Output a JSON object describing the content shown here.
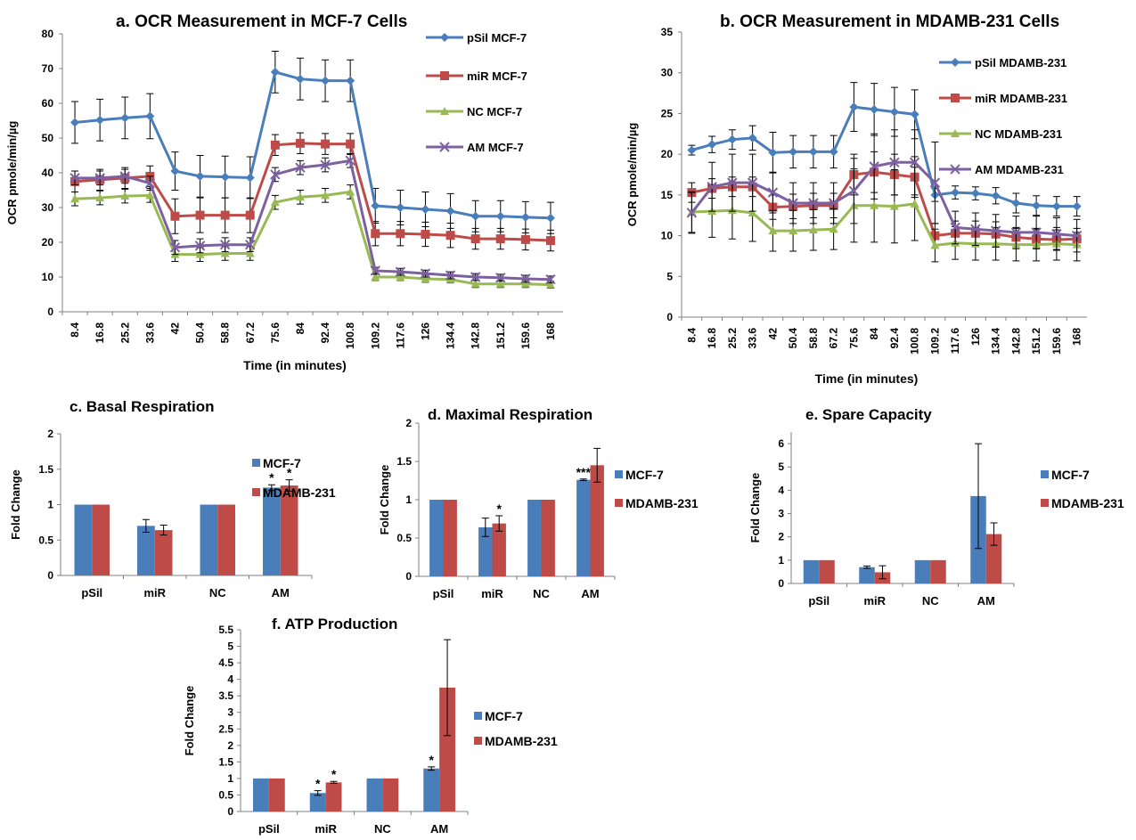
{
  "colors": {
    "pSil": "#4a7ebb",
    "miR": "#be4b48",
    "NC": "#98b954",
    "AM": "#7d60a0",
    "bar_mcf7": "#4a7ebb",
    "bar_mdamb": "#be4b48",
    "axis": "#808080",
    "error": "#000000"
  },
  "chart_data": [
    {
      "id": "a",
      "type": "line",
      "label": "a.",
      "title": "OCR Measurement in MCF-7 Cells",
      "xlabel": "Time (in minutes)",
      "ylabel": "OCR pmole/min/µg",
      "ylim": [
        0,
        80
      ],
      "yticks": [
        0,
        10,
        20,
        30,
        40,
        50,
        60,
        70,
        80
      ],
      "x": [
        "8.4",
        "16.8",
        "25.2",
        "33.6",
        "42",
        "50.4",
        "58.8",
        "67.2",
        "75.6",
        "84",
        "92.4",
        "100.8",
        "109.2",
        "117.6",
        "126",
        "134.4",
        "142.8",
        "151.2",
        "159.6",
        "168"
      ],
      "series": [
        {
          "name": "pSil MCF-7",
          "key": "pSil",
          "marker": "diamond",
          "values": [
            54.5,
            55.2,
            55.8,
            56.3,
            40.5,
            39.0,
            38.8,
            38.6,
            69.0,
            67.0,
            66.5,
            66.5,
            30.5,
            30.0,
            29.5,
            29.0,
            27.5,
            27.5,
            27.2,
            27.0
          ],
          "errors": [
            6,
            6,
            6,
            6.5,
            5.5,
            6,
            6,
            6,
            6,
            6,
            6,
            6,
            5,
            5,
            5,
            5,
            4.5,
            4.5,
            4.5,
            4.5
          ]
        },
        {
          "name": "miR MCF-7",
          "key": "miR",
          "marker": "square",
          "values": [
            37.5,
            38.0,
            38.5,
            39.0,
            27.5,
            27.8,
            27.8,
            27.8,
            48.0,
            48.5,
            48.3,
            48.3,
            22.5,
            22.5,
            22.3,
            22.0,
            21.0,
            21.0,
            20.8,
            20.5
          ],
          "errors": [
            3,
            3,
            3,
            3,
            5,
            5,
            5,
            5,
            3,
            3,
            3,
            3,
            3.5,
            3.5,
            3.5,
            3.5,
            3,
            3,
            3,
            3
          ]
        },
        {
          "name": "NC MCF-7",
          "key": "NC",
          "marker": "triangle",
          "values": [
            32.5,
            32.8,
            33.3,
            33.5,
            16.5,
            16.5,
            16.8,
            16.8,
            31.5,
            33.0,
            33.5,
            34.5,
            10.0,
            10.0,
            9.5,
            9.3,
            8.0,
            8.0,
            8.0,
            7.8
          ],
          "errors": [
            2,
            2,
            2,
            2,
            2,
            2,
            2,
            2,
            2,
            2,
            2,
            2,
            1,
            1,
            1,
            1,
            1,
            1,
            1,
            1
          ]
        },
        {
          "name": "AM MCF-7",
          "key": "AM",
          "marker": "x",
          "values": [
            38.5,
            38.5,
            39.0,
            37.0,
            18.5,
            19.0,
            19.3,
            19.3,
            39.5,
            41.5,
            42.3,
            43.5,
            11.8,
            11.5,
            11.0,
            10.5,
            10.0,
            9.8,
            9.5,
            9.3
          ],
          "errors": [
            2,
            2,
            2,
            2,
            2,
            2,
            2,
            2,
            2,
            2,
            2,
            2,
            1,
            1,
            1,
            1,
            1,
            1,
            1,
            1
          ]
        }
      ]
    },
    {
      "id": "b",
      "type": "line",
      "label": "b.",
      "title": "OCR Measurement in MDAMB-231 Cells",
      "xlabel": "Time (in minutes)",
      "ylabel": "OCR pmole/min/µg",
      "ylim": [
        0,
        35
      ],
      "yticks": [
        0,
        5,
        10,
        15,
        20,
        25,
        30,
        35
      ],
      "x": [
        "8.4",
        "16.8",
        "25.2",
        "33.6",
        "42",
        "50.4",
        "58.8",
        "67.2",
        "75.6",
        "84",
        "92.4",
        "100.8",
        "109.2",
        "117.6",
        "126",
        "134.4",
        "142.8",
        "151.2",
        "159.6",
        "168"
      ],
      "series": [
        {
          "name": "pSil MDAMB-231",
          "key": "pSil",
          "marker": "diamond",
          "values": [
            20.5,
            21.2,
            21.8,
            22.0,
            20.2,
            20.3,
            20.3,
            20.3,
            25.8,
            25.5,
            25.2,
            24.9,
            15.0,
            15.3,
            15.2,
            14.9,
            14.0,
            13.7,
            13.6,
            13.6
          ],
          "errors": [
            0.6,
            1.0,
            1.2,
            1.5,
            2.5,
            2.0,
            2.0,
            2.0,
            3.0,
            3.2,
            3.0,
            3.0,
            0.8,
            0.8,
            0.8,
            1.0,
            1.2,
            1.2,
            1.2,
            1.2
          ]
        },
        {
          "name": "miR MDAMB-231",
          "key": "miR",
          "marker": "square",
          "values": [
            15.3,
            15.8,
            16.0,
            16.0,
            13.5,
            13.6,
            13.7,
            13.7,
            17.5,
            17.8,
            17.5,
            17.2,
            10.0,
            10.3,
            10.3,
            10.2,
            9.8,
            9.6,
            9.5,
            9.6
          ],
          "errors": [
            1.2,
            1.2,
            1.2,
            1.2,
            1.5,
            1.5,
            1.5,
            1.5,
            2.5,
            2.5,
            2.5,
            2.5,
            1.5,
            1.5,
            1.5,
            1.5,
            1.2,
            1.2,
            1.2,
            0.8
          ]
        },
        {
          "name": "NC MDAMB-231",
          "key": "NC",
          "marker": "triangle",
          "values": [
            12.9,
            13.0,
            13.1,
            12.8,
            10.6,
            10.6,
            10.7,
            10.8,
            13.7,
            13.7,
            13.6,
            13.9,
            8.8,
            9.1,
            9.0,
            9.0,
            8.9,
            8.9,
            9.0,
            8.9
          ],
          "errors": [
            2.5,
            3.2,
            3.5,
            3.5,
            2.5,
            2.5,
            2.5,
            2.5,
            4.5,
            4.5,
            4.5,
            4.5,
            2.0,
            2.0,
            2.0,
            2.0,
            2.0,
            2.0,
            2.0,
            2.0
          ]
        },
        {
          "name": "AM MDAMB-231",
          "key": "AM",
          "marker": "x",
          "values": [
            12.8,
            16.0,
            16.5,
            16.5,
            15.3,
            14.0,
            14.0,
            14.0,
            15.5,
            18.5,
            19.0,
            19.0,
            16.5,
            11.0,
            10.8,
            10.6,
            10.4,
            10.4,
            10.2,
            10.0
          ],
          "errors": [
            2.5,
            3.0,
            3.5,
            3.5,
            2.5,
            2.5,
            2.5,
            2.5,
            4.0,
            4.0,
            4.0,
            4.0,
            5.0,
            2.0,
            2.0,
            2.0,
            2.0,
            2.0,
            2.0,
            2.0
          ]
        }
      ]
    },
    {
      "id": "c",
      "type": "bar",
      "label": "c.",
      "title": "Basal Respiration",
      "xlabel": "",
      "ylabel": "Fold Change",
      "ylim": [
        0,
        2
      ],
      "yticks": [
        "0",
        "0.5",
        "1",
        "1.5",
        "2"
      ],
      "ytick_values": [
        0,
        0.5,
        1,
        1.5,
        2
      ],
      "categories": [
        "pSil",
        "miR",
        "NC",
        "AM"
      ],
      "series": [
        {
          "name": "MCF-7",
          "values": [
            1.0,
            0.7,
            1.0,
            1.24
          ],
          "errors": [
            0,
            0.09,
            0,
            0.04
          ],
          "sig": [
            "",
            "",
            "",
            "*"
          ]
        },
        {
          "name": "MDAMB-231",
          "values": [
            1.0,
            0.64,
            1.0,
            1.27
          ],
          "errors": [
            0,
            0.07,
            0,
            0.08
          ],
          "sig": [
            "",
            "",
            "",
            "*"
          ]
        }
      ]
    },
    {
      "id": "d",
      "type": "bar",
      "label": "d.",
      "title": "Maximal Respiration",
      "xlabel": "",
      "ylabel": "Fold Change",
      "ylim": [
        0,
        2
      ],
      "yticks": [
        "0",
        "0.5",
        "1",
        "1.5",
        "2"
      ],
      "ytick_values": [
        0,
        0.5,
        1,
        1.5,
        2
      ],
      "categories": [
        "pSil",
        "miR",
        "NC",
        "AM"
      ],
      "series": [
        {
          "name": "MCF-7",
          "values": [
            1.0,
            0.64,
            1.0,
            1.26
          ],
          "errors": [
            0,
            0.12,
            0,
            0.01
          ],
          "sig": [
            "",
            "",
            "",
            "***"
          ]
        },
        {
          "name": "MDAMB-231",
          "values": [
            1.0,
            0.69,
            1.0,
            1.45
          ],
          "errors": [
            0,
            0.1,
            0,
            0.22
          ],
          "sig": [
            "",
            "*",
            "",
            ""
          ]
        }
      ]
    },
    {
      "id": "e",
      "type": "bar",
      "label": "e.",
      "title": "Spare Capacity",
      "xlabel": "",
      "ylabel": "Fold Change",
      "ylim": [
        0,
        6.5
      ],
      "yticks": [
        "0",
        "1",
        "2",
        "3",
        "4",
        "5",
        "6"
      ],
      "ytick_values": [
        0,
        1,
        2,
        3,
        4,
        5,
        6
      ],
      "categories": [
        "pSil",
        "miR",
        "NC",
        "AM"
      ],
      "series": [
        {
          "name": "MCF-7",
          "values": [
            1.0,
            0.7,
            1.0,
            3.75
          ],
          "errors": [
            0,
            0.05,
            0,
            2.25
          ],
          "sig": [
            "",
            "",
            "",
            ""
          ]
        },
        {
          "name": "MDAMB-231",
          "values": [
            1.0,
            0.48,
            1.0,
            2.12
          ],
          "errors": [
            0,
            0.28,
            0,
            0.48
          ],
          "sig": [
            "",
            "",
            "",
            ""
          ]
        }
      ]
    },
    {
      "id": "f",
      "type": "bar",
      "label": "f.",
      "title": "ATP Production",
      "xlabel": "",
      "ylabel": "Fold Change",
      "ylim": [
        0,
        5.5
      ],
      "yticks": [
        "0",
        "0.5",
        "1",
        "1.5",
        "2",
        "2.5",
        "3",
        "3.5",
        "4",
        "4.5",
        "5",
        "5.5"
      ],
      "ytick_values": [
        0,
        0.5,
        1,
        1.5,
        2,
        2.5,
        3,
        3.5,
        4,
        4.5,
        5,
        5.5
      ],
      "categories": [
        "pSil",
        "miR",
        "NC",
        "AM"
      ],
      "series": [
        {
          "name": "MCF-7",
          "values": [
            1.0,
            0.56,
            1.0,
            1.3
          ],
          "errors": [
            0,
            0.07,
            0,
            0.05
          ],
          "sig": [
            "",
            "*",
            "",
            "*"
          ]
        },
        {
          "name": "MDAMB-231",
          "values": [
            1.0,
            0.88,
            1.0,
            3.75
          ],
          "errors": [
            0,
            0.03,
            0,
            1.45
          ],
          "sig": [
            "",
            "*",
            "",
            ""
          ]
        }
      ]
    }
  ]
}
